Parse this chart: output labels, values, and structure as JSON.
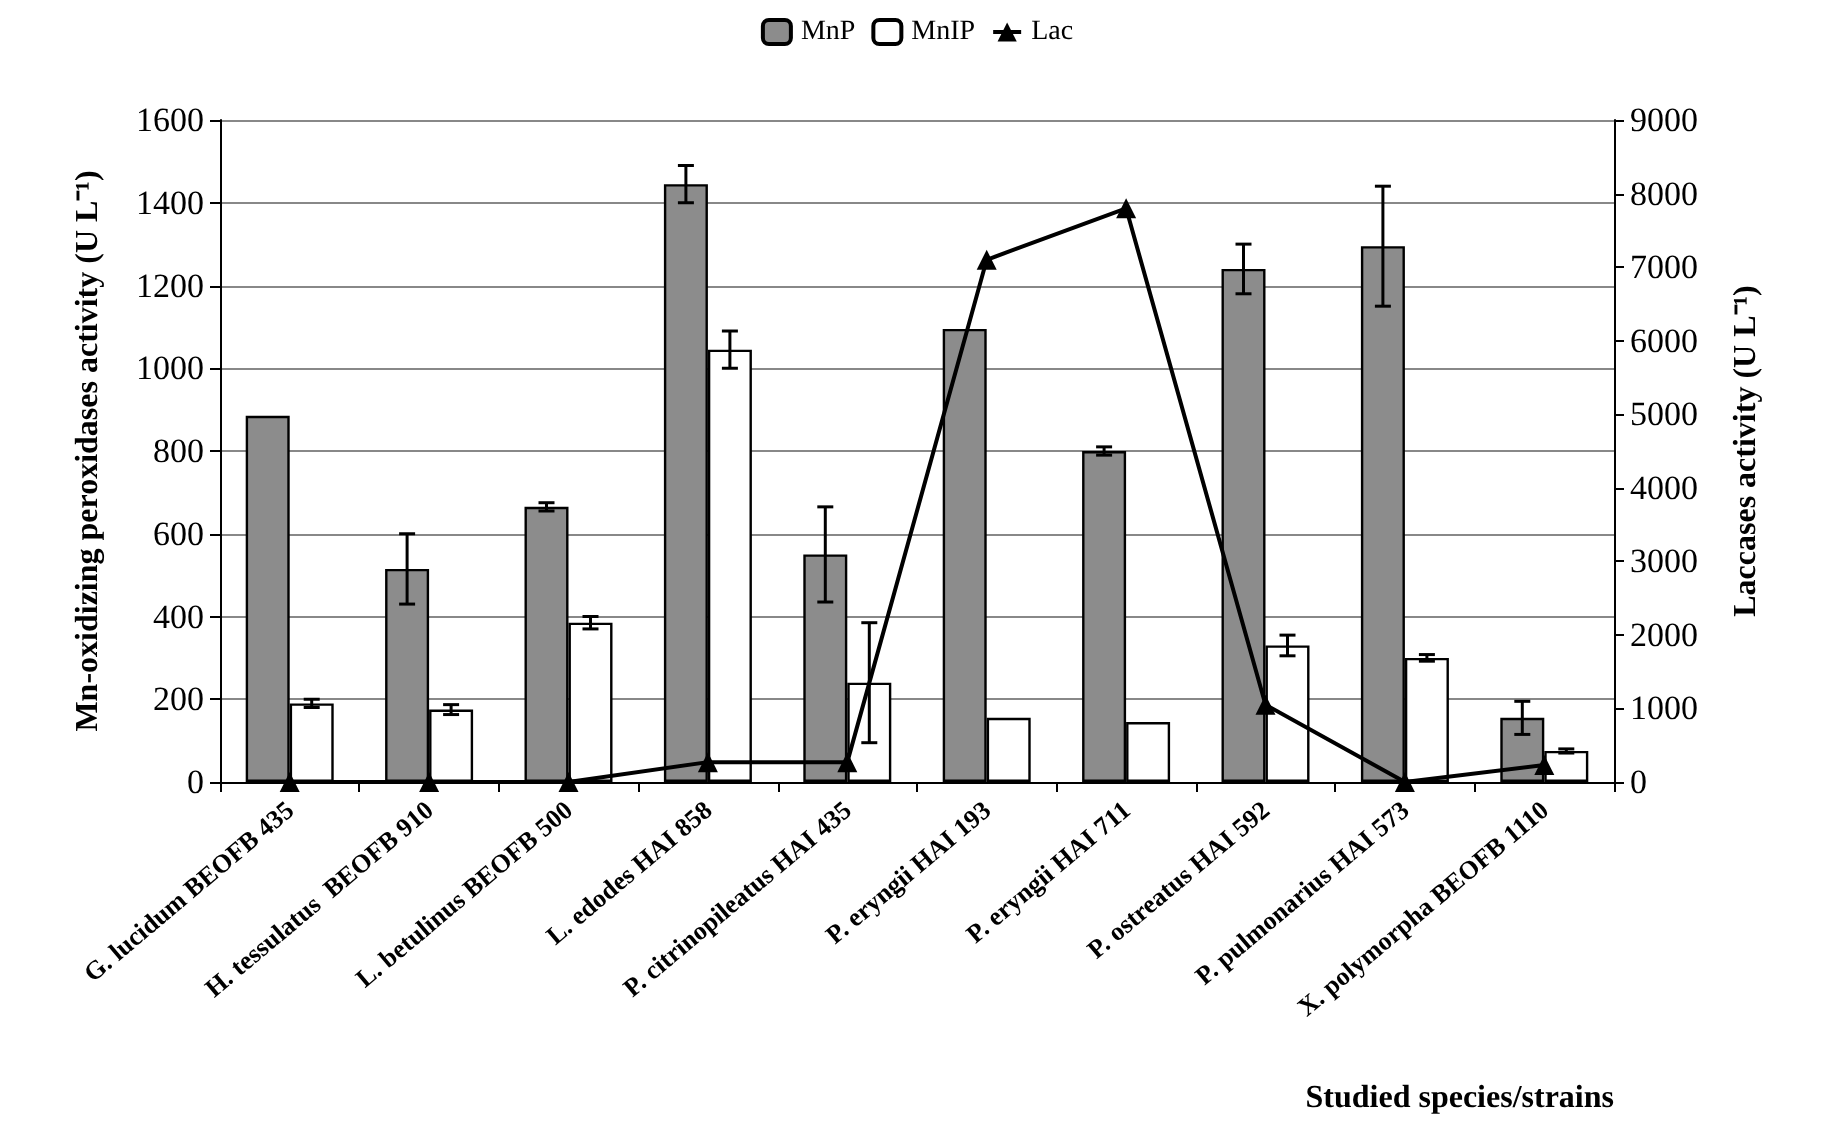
{
  "chart_data": {
    "type": "bar",
    "xlabel": "Studied species/strains",
    "ylabel": "Mn-oxidizing peroxidases activity (U L⁻¹)",
    "y2label": "Laccases activity (U L⁻¹)",
    "categories": [
      "G. lucidum BEOFB 435",
      "H. tessulatus  BEOFB 910",
      "L. betulinus BEOFB 500",
      "L. edodes HAI 858",
      "P. citrinopileatus HAI 435",
      "P. eryngii HAI 193",
      "P. eryngii HAI 711",
      "P. ostreatus HAI 592",
      "P. pulmonarius HAI 573",
      "X. polymorpha BEOFB 1110"
    ],
    "series": [
      {
        "name": "MnP",
        "color": "#8c8c8c",
        "values": [
          885,
          515,
          665,
          1445,
          550,
          1095,
          800,
          1240,
          1295,
          155
        ],
        "errors": [
          null,
          85,
          10,
          45,
          115,
          null,
          10,
          60,
          145,
          40
        ]
      },
      {
        "name": "MnIP",
        "color": "#ffffff",
        "values": [
          190,
          175,
          385,
          1045,
          240,
          155,
          145,
          330,
          300,
          75
        ],
        "errors": [
          10,
          12,
          15,
          45,
          145,
          null,
          null,
          25,
          8,
          5
        ]
      },
      {
        "name": "Lac",
        "type": "line",
        "axis": "y2",
        "color": "#000000",
        "marker": "triangle",
        "values": [
          0,
          0,
          0,
          270,
          270,
          7100,
          7800,
          1050,
          0,
          230
        ]
      }
    ],
    "ylim": [
      0,
      1600
    ],
    "yticks": [
      0,
      200,
      400,
      600,
      800,
      1000,
      1200,
      1400,
      1600
    ],
    "y2lim": [
      0,
      9000
    ],
    "y2ticks": [
      0,
      1000,
      2000,
      3000,
      4000,
      5000,
      6000,
      7000,
      8000,
      9000
    ],
    "grid": "y",
    "legend": "top"
  }
}
